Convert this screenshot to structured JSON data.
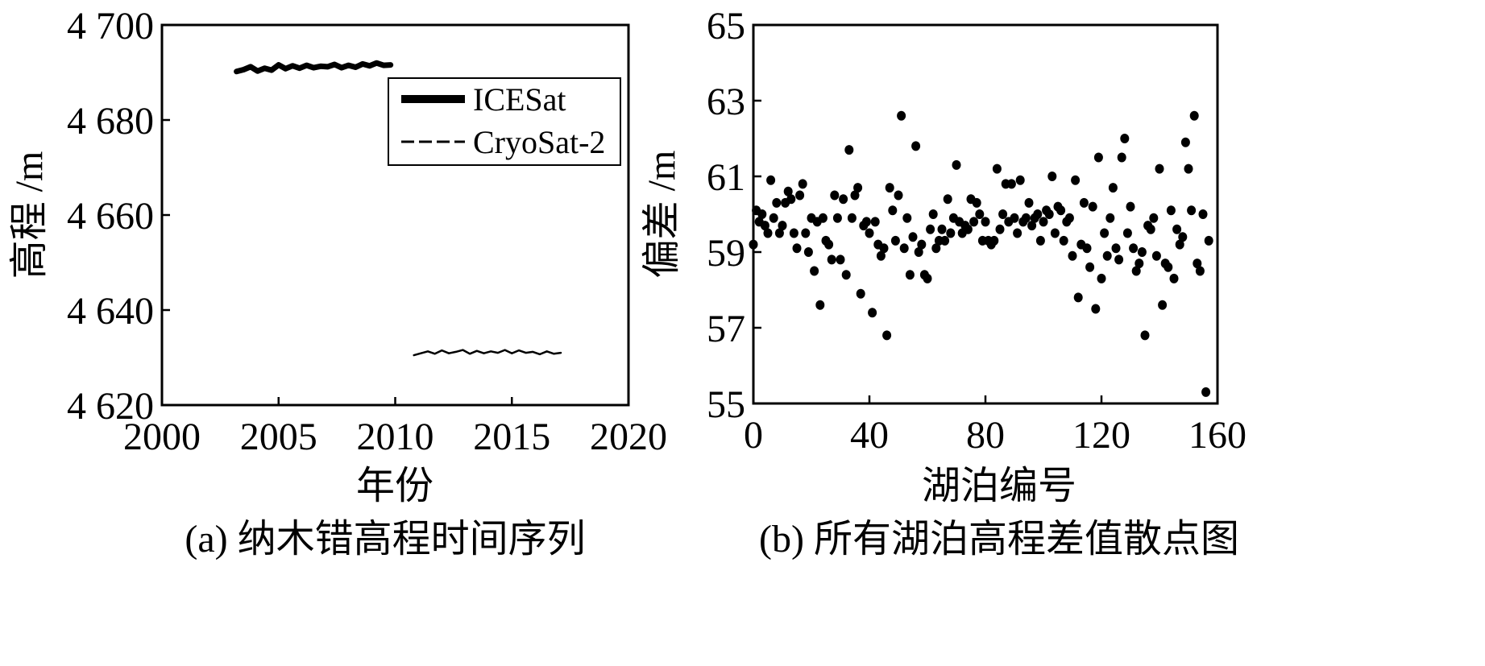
{
  "chart_data": [
    {
      "panel": "a",
      "type": "line",
      "caption": "(a) 纳木错高程时间序列",
      "xlabel": "年份",
      "ylabel": "高程 /m",
      "xlim": [
        2000,
        2020
      ],
      "ylim": [
        4620,
        4700
      ],
      "xticks": [
        2000,
        2005,
        2010,
        2015,
        2020
      ],
      "xtick_labels": [
        "2000",
        "2005",
        "2010",
        "2015",
        "2020"
      ],
      "yticks": [
        4620,
        4640,
        4660,
        4680,
        4700
      ],
      "ytick_labels": [
        "4 620",
        "4 640",
        "4 660",
        "4 680",
        "4 700"
      ],
      "legend": {
        "position": "upper-right"
      },
      "series": [
        {
          "name": "ICESat",
          "style": "thick",
          "color": "#000000",
          "x": [
            2003.2,
            2003.5,
            2003.8,
            2004.1,
            2004.4,
            2004.7,
            2005.0,
            2005.3,
            2005.6,
            2005.9,
            2006.2,
            2006.5,
            2006.8,
            2007.1,
            2007.4,
            2007.7,
            2008.0,
            2008.3,
            2008.6,
            2008.9,
            2009.2,
            2009.5,
            2009.8
          ],
          "y": [
            4690.2,
            4690.6,
            4691.2,
            4690.3,
            4690.9,
            4690.5,
            4691.6,
            4690.8,
            4691.4,
            4690.9,
            4691.5,
            4691.0,
            4691.3,
            4691.2,
            4691.7,
            4691.0,
            4691.5,
            4691.1,
            4691.8,
            4691.4,
            4692.0,
            4691.5,
            4691.6
          ]
        },
        {
          "name": "CryoSat-2",
          "style": "thin",
          "color": "#000000",
          "x": [
            2010.8,
            2011.1,
            2011.4,
            2011.7,
            2012.0,
            2012.3,
            2012.6,
            2012.9,
            2013.2,
            2013.5,
            2013.8,
            2014.1,
            2014.4,
            2014.7,
            2015.0,
            2015.3,
            2015.6,
            2015.9,
            2016.2,
            2016.5,
            2016.8,
            2017.1
          ],
          "y": [
            4630.5,
            4630.9,
            4631.3,
            4630.8,
            4631.5,
            4630.9,
            4631.2,
            4631.6,
            4630.8,
            4631.4,
            4630.9,
            4631.3,
            4631.0,
            4631.6,
            4630.9,
            4631.5,
            4631.0,
            4631.2,
            4630.7,
            4631.3,
            4630.8,
            4631.0
          ]
        }
      ]
    },
    {
      "panel": "b",
      "type": "scatter",
      "caption": "(b) 所有湖泊高程差值散点图",
      "xlabel": "湖泊编号",
      "ylabel": "偏差 /m",
      "xlim": [
        0,
        160
      ],
      "ylim": [
        55,
        65
      ],
      "xticks": [
        0,
        40,
        80,
        120,
        160
      ],
      "xtick_labels": [
        "0",
        "40",
        "80",
        "120",
        "160"
      ],
      "yticks": [
        55,
        57,
        59,
        61,
        63,
        65
      ],
      "ytick_labels": [
        "55",
        "57",
        "59",
        "61",
        "63",
        "65"
      ],
      "color": "#000000",
      "points": [
        [
          0,
          59.2
        ],
        [
          1,
          60.1
        ],
        [
          2,
          59.8
        ],
        [
          3,
          60.0
        ],
        [
          4,
          59.7
        ],
        [
          5,
          59.5
        ],
        [
          6,
          60.9
        ],
        [
          7,
          59.9
        ],
        [
          8,
          60.3
        ],
        [
          9,
          59.5
        ],
        [
          10,
          59.7
        ],
        [
          11,
          60.3
        ],
        [
          12,
          60.6
        ],
        [
          13,
          60.4
        ],
        [
          14,
          59.5
        ],
        [
          15,
          59.1
        ],
        [
          16,
          60.5
        ],
        [
          17,
          60.8
        ],
        [
          18,
          59.5
        ],
        [
          19,
          59.0
        ],
        [
          20,
          59.9
        ],
        [
          21,
          58.5
        ],
        [
          22,
          59.8
        ],
        [
          23,
          57.6
        ],
        [
          24,
          59.9
        ],
        [
          25,
          59.3
        ],
        [
          26,
          59.2
        ],
        [
          27,
          58.8
        ],
        [
          28,
          60.5
        ],
        [
          29,
          59.9
        ],
        [
          30,
          58.8
        ],
        [
          31,
          60.4
        ],
        [
          32,
          58.4
        ],
        [
          33,
          61.7
        ],
        [
          34,
          59.9
        ],
        [
          35,
          60.5
        ],
        [
          36,
          60.7
        ],
        [
          37,
          57.9
        ],
        [
          38,
          59.7
        ],
        [
          39,
          59.8
        ],
        [
          40,
          59.5
        ],
        [
          41,
          57.4
        ],
        [
          42,
          59.8
        ],
        [
          43,
          59.2
        ],
        [
          44,
          58.9
        ],
        [
          45,
          59.1
        ],
        [
          46,
          56.8
        ],
        [
          47,
          60.7
        ],
        [
          48,
          60.1
        ],
        [
          49,
          59.3
        ],
        [
          50,
          60.5
        ],
        [
          51,
          62.6
        ],
        [
          52,
          59.1
        ],
        [
          53,
          59.9
        ],
        [
          54,
          58.4
        ],
        [
          55,
          59.4
        ],
        [
          56,
          61.8
        ],
        [
          57,
          59.0
        ],
        [
          58,
          59.2
        ],
        [
          59,
          58.4
        ],
        [
          60,
          58.3
        ],
        [
          61,
          59.6
        ],
        [
          62,
          60.0
        ],
        [
          63,
          59.1
        ],
        [
          64,
          59.3
        ],
        [
          65,
          59.6
        ],
        [
          66,
          59.3
        ],
        [
          67,
          60.4
        ],
        [
          68,
          59.5
        ],
        [
          69,
          59.9
        ],
        [
          70,
          61.3
        ],
        [
          71,
          59.8
        ],
        [
          72,
          59.5
        ],
        [
          73,
          59.7
        ],
        [
          74,
          59.6
        ],
        [
          75,
          60.4
        ],
        [
          76,
          59.8
        ],
        [
          77,
          60.3
        ],
        [
          78,
          60.0
        ],
        [
          79,
          59.3
        ],
        [
          80,
          59.8
        ],
        [
          81,
          59.3
        ],
        [
          82,
          59.2
        ],
        [
          83,
          59.3
        ],
        [
          84,
          61.2
        ],
        [
          85,
          59.6
        ],
        [
          86,
          60.0
        ],
        [
          87,
          60.8
        ],
        [
          88,
          59.8
        ],
        [
          89,
          60.8
        ],
        [
          90,
          59.9
        ],
        [
          91,
          59.5
        ],
        [
          92,
          60.9
        ],
        [
          93,
          59.8
        ],
        [
          94,
          59.9
        ],
        [
          95,
          60.3
        ],
        [
          96,
          59.7
        ],
        [
          97,
          59.9
        ],
        [
          98,
          60.0
        ],
        [
          99,
          59.3
        ],
        [
          100,
          59.8
        ],
        [
          101,
          60.1
        ],
        [
          102,
          60.0
        ],
        [
          103,
          61.0
        ],
        [
          104,
          59.5
        ],
        [
          105,
          60.2
        ],
        [
          106,
          60.1
        ],
        [
          107,
          59.3
        ],
        [
          108,
          59.8
        ],
        [
          109,
          59.9
        ],
        [
          110,
          58.9
        ],
        [
          111,
          60.9
        ],
        [
          112,
          57.8
        ],
        [
          113,
          59.2
        ],
        [
          114,
          60.3
        ],
        [
          115,
          59.1
        ],
        [
          116,
          58.6
        ],
        [
          117,
          60.2
        ],
        [
          118,
          57.5
        ],
        [
          119,
          61.5
        ],
        [
          120,
          58.3
        ],
        [
          121,
          59.5
        ],
        [
          122,
          58.9
        ],
        [
          123,
          59.9
        ],
        [
          124,
          60.7
        ],
        [
          125,
          59.1
        ],
        [
          126,
          58.8
        ],
        [
          127,
          61.5
        ],
        [
          128,
          62.0
        ],
        [
          129,
          59.5
        ],
        [
          130,
          60.2
        ],
        [
          131,
          59.1
        ],
        [
          132,
          58.5
        ],
        [
          133,
          58.7
        ],
        [
          134,
          59.0
        ],
        [
          135,
          56.8
        ],
        [
          136,
          59.7
        ],
        [
          137,
          59.6
        ],
        [
          138,
          59.9
        ],
        [
          139,
          58.9
        ],
        [
          140,
          61.2
        ],
        [
          141,
          57.6
        ],
        [
          142,
          58.7
        ],
        [
          143,
          58.6
        ],
        [
          144,
          60.1
        ],
        [
          145,
          58.3
        ],
        [
          146,
          59.6
        ],
        [
          147,
          59.2
        ],
        [
          148,
          59.4
        ],
        [
          149,
          61.9
        ],
        [
          150,
          61.2
        ],
        [
          151,
          60.1
        ],
        [
          152,
          62.6
        ],
        [
          153,
          58.7
        ],
        [
          154,
          58.5
        ],
        [
          155,
          60.0
        ],
        [
          156,
          55.3
        ],
        [
          157,
          59.3
        ]
      ]
    }
  ]
}
